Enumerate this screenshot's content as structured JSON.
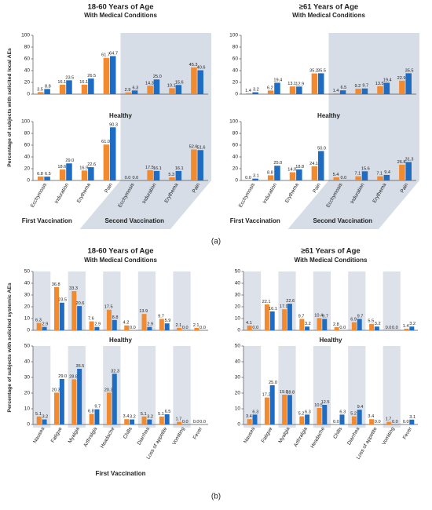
{
  "chart_data": [
    {
      "type": "bar",
      "title": "18-60 Years of Age",
      "subtitle": "With Medical Conditions",
      "ylabel": "Percentage of subjects with solicited local AEs",
      "series": [
        {
          "color": "#f28a30",
          "values": [
            3.5,
            16.1,
            16.1,
            61.7,
            2.9,
            14.3,
            10.1,
            45.3
          ],
          "value_labels": [
            "3.5",
            "16.1",
            "16.1",
            "61.7",
            "2.9",
            "14.3",
            "10.1",
            "45.3"
          ]
        },
        {
          "color": "#1f6dc2",
          "values": [
            8.8,
            23.5,
            26.5,
            64.7,
            6.3,
            25.0,
            15.6,
            40.6
          ],
          "value_labels": [
            "8.8",
            "23.5",
            "26.5",
            "64.7",
            "6.3",
            "25.0",
            "15.6",
            "40.6"
          ]
        }
      ],
      "ylim": [
        0,
        100
      ],
      "yticks": [
        0,
        20,
        40,
        60,
        80,
        100
      ]
    },
    {
      "type": "bar",
      "subtitle": "Healthy",
      "categories": [
        "Ecchymosis",
        "Induration",
        "Erythema",
        "Pain",
        "Ecchymosis",
        "Induration",
        "Erythema",
        "Pain"
      ],
      "x_groups": [
        "First Vaccination",
        "Second Vaccination"
      ],
      "series": [
        {
          "color": "#f28a30",
          "values": [
            6.8,
            18.6,
            16.9,
            61.0,
            0.0,
            17.5,
            5.3,
            52.6
          ],
          "value_labels": [
            "6.8",
            "18.6",
            "16.9",
            "61.0",
            "0.0",
            "17.5",
            "5.3",
            "52.6"
          ]
        },
        {
          "color": "#1f6dc2",
          "values": [
            6.5,
            29.0,
            22.6,
            90.3,
            0.0,
            16.1,
            16.1,
            51.6
          ],
          "value_labels": [
            "6.5",
            "29.0",
            "22.6",
            "90.3",
            "0.0",
            "16.1",
            "16.1",
            "51.6"
          ]
        }
      ],
      "ylim": [
        0,
        100
      ],
      "yticks": [
        0,
        20,
        40,
        60,
        80,
        100
      ]
    },
    {
      "type": "bar",
      "title": "≥61 Years of Age",
      "subtitle": "With Medical Conditions",
      "series": [
        {
          "color": "#f28a30",
          "values": [
            1.4,
            6.2,
            13.1,
            35.2,
            1.4,
            9.2,
            13.5,
            22.9
          ],
          "value_labels": [
            "1.4",
            "6.2",
            "13.1",
            "35.2",
            "1.4",
            "9.2",
            "13.5",
            "22.9"
          ]
        },
        {
          "color": "#1f6dc2",
          "values": [
            3.2,
            19.4,
            12.9,
            35.5,
            6.5,
            9.7,
            19.4,
            35.5
          ],
          "value_labels": [
            "3.2",
            "19.4",
            "12.9",
            "35.5",
            "6.5",
            "9.7",
            "19.4",
            "35.5"
          ]
        }
      ],
      "ylim": [
        0,
        100
      ],
      "yticks": [
        0,
        20,
        40,
        60,
        80,
        100
      ]
    },
    {
      "type": "bar",
      "subtitle": "Healthy",
      "categories": [
        "Ecchymosis",
        "Induration",
        "Erythema",
        "Pain",
        "Ecchymosis",
        "Induration",
        "Erythema",
        "Pain"
      ],
      "x_groups": [
        "First Vaccination",
        "Second Vaccination"
      ],
      "series": [
        {
          "color": "#f28a30",
          "values": [
            0.0,
            8.8,
            14.0,
            24.1,
            5.4,
            7.1,
            7.1,
            26.8
          ],
          "value_labels": [
            "0.0",
            "8.8",
            "14.0",
            "24.1",
            "5.4",
            "7.1",
            "7.1",
            "26.8"
          ]
        },
        {
          "color": "#1f6dc2",
          "values": [
            3.1,
            25.0,
            18.8,
            50.0,
            0.0,
            15.6,
            9.4,
            31.3
          ],
          "value_labels": [
            "3.1",
            "25.0",
            "18.8",
            "50.0",
            "0.0",
            "15.6",
            "9.4",
            "31.3"
          ]
        }
      ],
      "ylim": [
        0,
        100
      ],
      "yticks": [
        0,
        20,
        40,
        60,
        80,
        100
      ]
    },
    {
      "type": "bar",
      "title": "18-60 Years of Age",
      "subtitle": "With Medical Conditions",
      "ylabel": "Percentage of subjects with solicited systemic AEs",
      "series": [
        {
          "color": "#f28a30",
          "values": [
            6.3,
            36.8,
            33.3,
            7.6,
            17.5,
            4.2,
            13.9,
            9.7,
            2.1,
            2.1
          ],
          "value_labels": [
            "6.3",
            "36.8",
            "33.3",
            "7.6",
            "17.5",
            "4.2",
            "13.9",
            "9.7",
            "2.1",
            "2.1"
          ]
        },
        {
          "color": "#1f6dc2",
          "values": [
            2.9,
            23.5,
            20.6,
            2.9,
            8.8,
            0.0,
            2.9,
            5.9,
            0.0,
            0.0
          ],
          "value_labels": [
            "2.9",
            "23.5",
            "20.6",
            "2.9",
            "8.8",
            "0.0",
            "2.9",
            "5.9",
            "0.0",
            "0.0"
          ]
        }
      ],
      "ylim": [
        0,
        50
      ],
      "yticks": [
        0,
        10,
        20,
        30,
        40,
        50
      ]
    },
    {
      "type": "bar",
      "subtitle": "Healthy",
      "categories": [
        "Nausea",
        "Fatigue",
        "Myalgia",
        "Arthralgia",
        "Headache",
        "Chills",
        "Diarrhea",
        "Loss of appetite",
        "Vomiting",
        "Fever"
      ],
      "x_groups": [
        "First Vaccination"
      ],
      "series": [
        {
          "color": "#f28a30",
          "values": [
            5.1,
            20.3,
            28.8,
            6.8,
            20.3,
            3.4,
            5.1,
            5.1,
            1.7,
            0.0
          ],
          "value_labels": [
            "5.1",
            "20.3",
            "28.8",
            "6.8",
            "20.3",
            "3.4",
            "5.1",
            "5.1",
            "1.7",
            "0.0"
          ]
        },
        {
          "color": "#1f6dc2",
          "values": [
            3.2,
            29.0,
            35.5,
            9.7,
            32.3,
            3.2,
            3.2,
            6.5,
            0.0,
            0.0
          ],
          "value_labels": [
            "3.2",
            "29.0",
            "35.5",
            "9.7",
            "32.3",
            "3.2",
            "3.2",
            "6.5",
            "0.0",
            "0.0"
          ]
        }
      ],
      "ylim": [
        0,
        50
      ],
      "yticks": [
        0,
        10,
        20,
        30,
        40,
        50
      ]
    },
    {
      "type": "bar",
      "title": "≥61 Years of Age",
      "subtitle": "With Medical Conditions",
      "series": [
        {
          "color": "#f28a30",
          "values": [
            4.1,
            22.1,
            17.9,
            9.7,
            10.4,
            2.8,
            6.9,
            5.5,
            0.0,
            1.4
          ],
          "value_labels": [
            "4.1",
            "22.1",
            "17.9",
            "9.7",
            "10.4",
            "2.8",
            "6.9",
            "5.5",
            "0.0",
            "1.4"
          ]
        },
        {
          "color": "#1f6dc2",
          "values": [
            0.0,
            16.1,
            22.6,
            3.2,
            9.7,
            0.0,
            9.7,
            3.2,
            0.0,
            3.2
          ],
          "value_labels": [
            "0.0",
            "16.1",
            "22.6",
            "3.2",
            "9.7",
            "0.0",
            "9.7",
            "3.2",
            "0.0",
            "3.2"
          ]
        }
      ],
      "ylim": [
        0,
        50
      ],
      "yticks": [
        0,
        10,
        20,
        30,
        40,
        50
      ]
    },
    {
      "type": "bar",
      "subtitle": "Healthy",
      "categories": [
        "Nausea",
        "Fatigue",
        "Myalgia",
        "Arthralgia",
        "Headache",
        "Chills",
        "Diarrhea",
        "Loss of appetite",
        "Vomiting",
        "Fever"
      ],
      "series": [
        {
          "color": "#f28a30",
          "values": [
            3.4,
            17.2,
            19.0,
            5.2,
            10.5,
            0.0,
            5.2,
            3.4,
            1.7,
            0.0
          ],
          "value_labels": [
            "3.4",
            "17.2",
            "19.0",
            "5.2",
            "10.5",
            "0.0",
            "5.2",
            "3.4",
            "1.7",
            "0.0"
          ]
        },
        {
          "color": "#1f6dc2",
          "values": [
            6.3,
            25.0,
            18.8,
            6.3,
            12.5,
            6.3,
            9.4,
            0.0,
            0.0,
            3.1
          ],
          "value_labels": [
            "6.3",
            "25.0",
            "18.8",
            "6.3",
            "12.5",
            "6.3",
            "9.4",
            "0.0",
            "0.0",
            "3.1"
          ]
        }
      ],
      "ylim": [
        0,
        50
      ],
      "yticks": [
        0,
        10,
        20,
        30,
        40,
        50
      ]
    }
  ],
  "captions": [
    "(a)",
    "(b)"
  ]
}
